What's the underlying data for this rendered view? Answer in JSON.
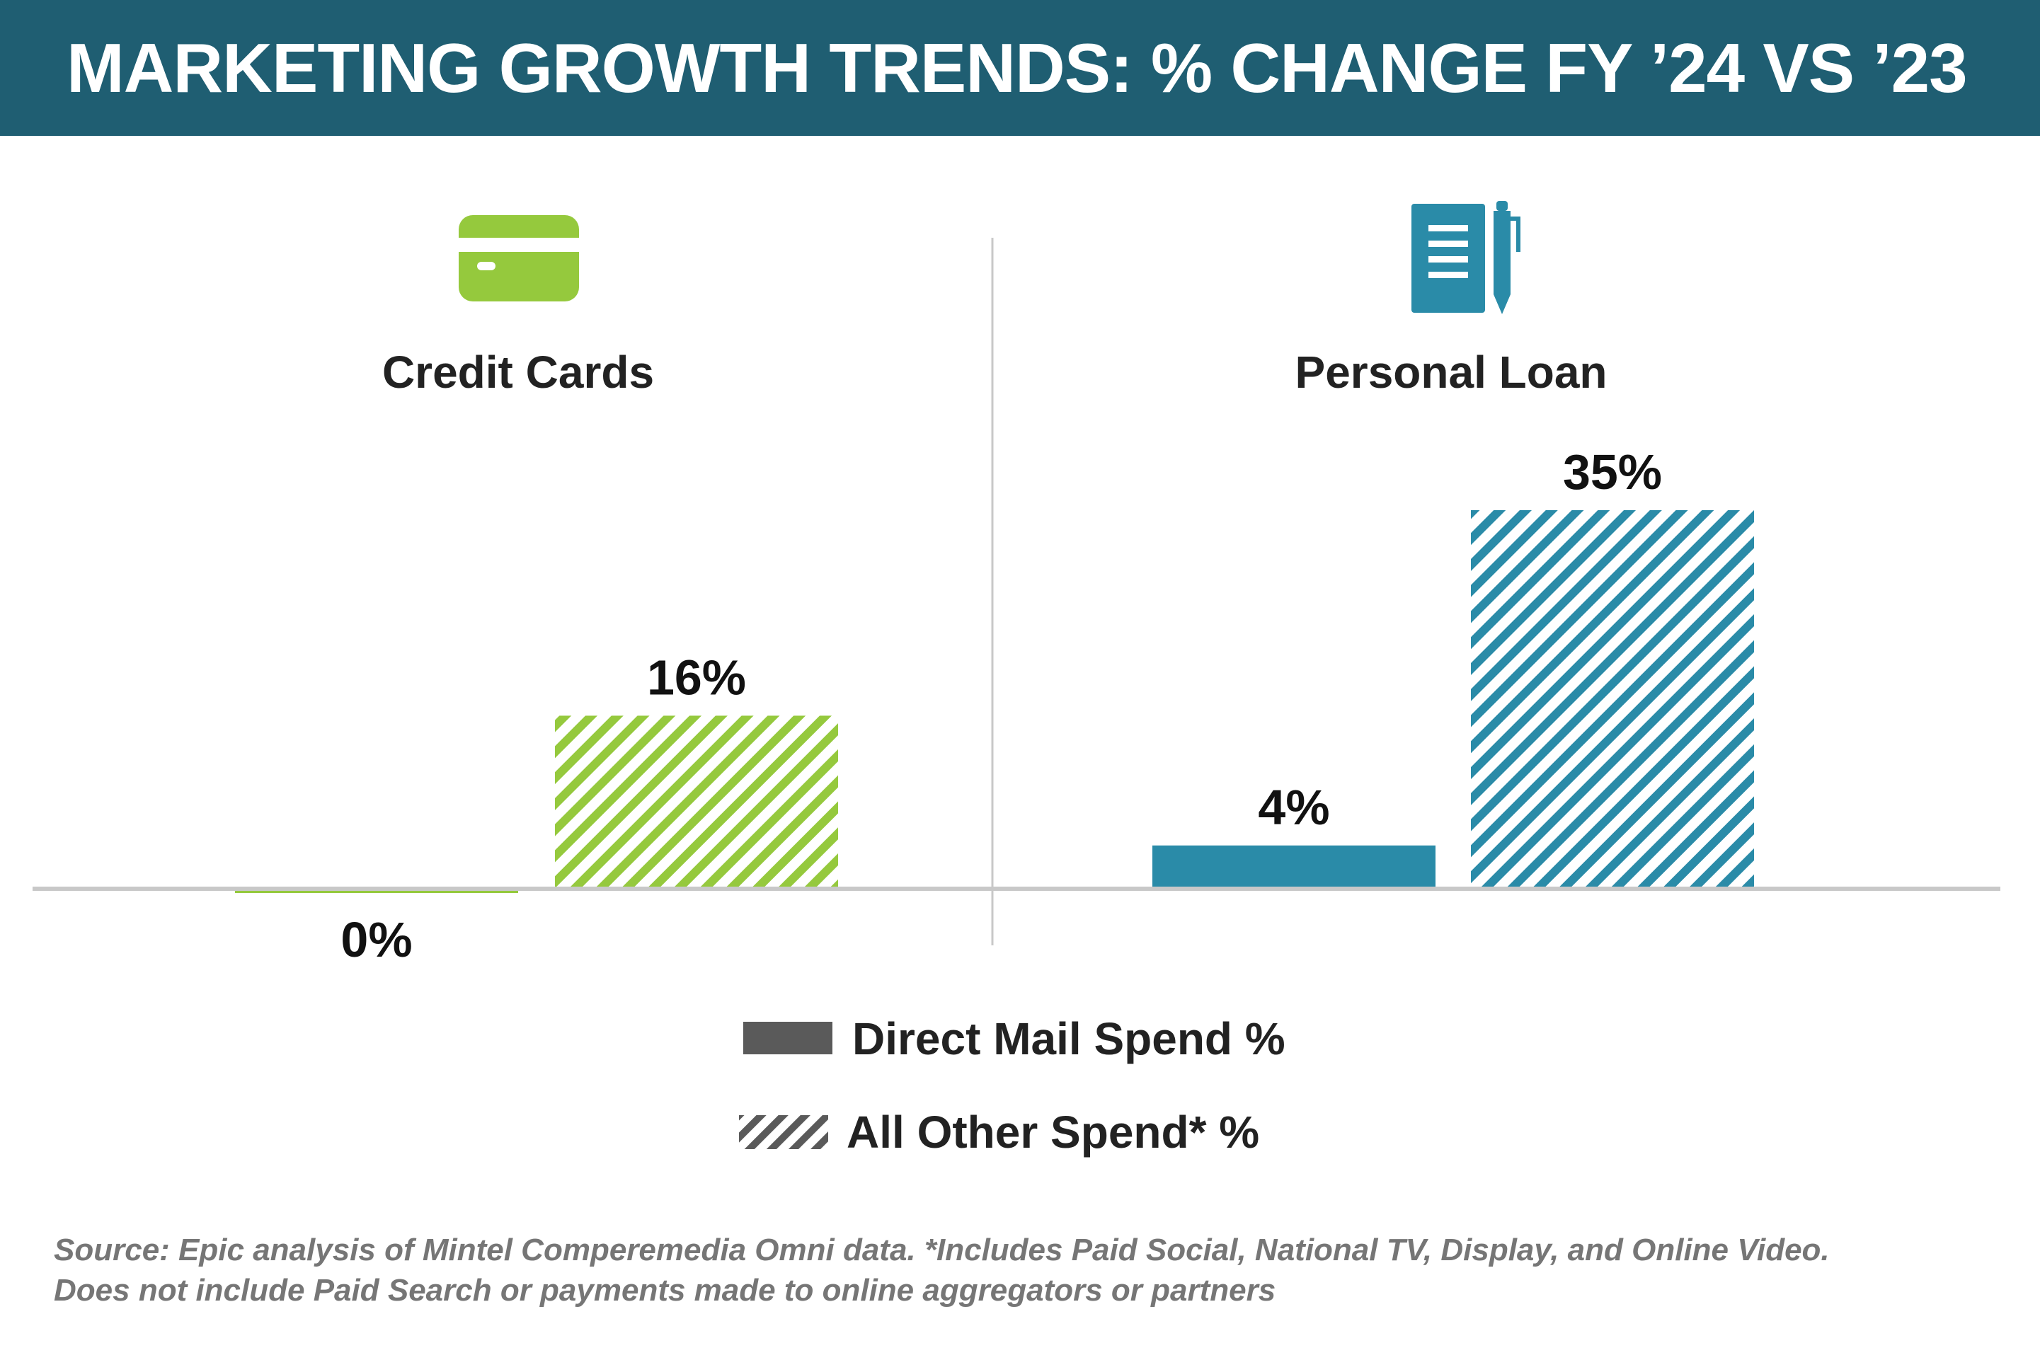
{
  "header": {
    "title": "MARKETING GROWTH TRENDS: % CHANGE FY ’24 VS ’23"
  },
  "chart_data": {
    "type": "bar",
    "title": "MARKETING GROWTH TRENDS: % CHANGE FY ’24 VS ’23",
    "categories": [
      "Credit Cards",
      "Personal Loan"
    ],
    "series": [
      {
        "name": "Direct Mail Spend %",
        "values": [
          0,
          4
        ],
        "labels": [
          "0%",
          "4%"
        ],
        "fill": "solid"
      },
      {
        "name": "All Other Spend* %",
        "values": [
          16,
          35
        ],
        "labels": [
          "16%",
          "35%"
        ],
        "fill": "hatched"
      }
    ],
    "category_colors": [
      "#95c93d",
      "#2a8ba8"
    ],
    "category_icons": [
      "credit-card-icon",
      "notebook-pen-icon"
    ],
    "unit": "%",
    "xlabel": "",
    "ylabel": "",
    "ylim": [
      0,
      35
    ],
    "grid": false,
    "legend_position": "bottom-center"
  },
  "legend": {
    "items": [
      {
        "label": "Direct Mail Spend %",
        "color": "#5a5a5a",
        "style": "solid"
      },
      {
        "label": "All Other Spend* %",
        "color": "#5a5a5a",
        "style": "hatched"
      }
    ]
  },
  "footnote": {
    "line1": "Source: Epic analysis of Mintel Comperemedia Omni data. *Includes Paid Social, National TV, Display, and Online Video.",
    "line2": "Does not include Paid Search or payments made to online aggregators or partners"
  },
  "colors": {
    "header_bg": "#1f5e72",
    "credit_cards": "#95c93d",
    "personal_loan": "#2a8ba8",
    "axis": "#c8c8c8",
    "legend_swatch": "#5a5a5a"
  }
}
